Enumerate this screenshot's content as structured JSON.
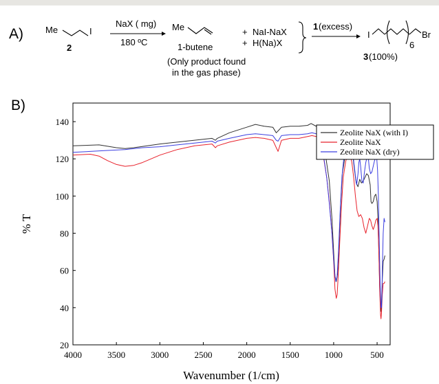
{
  "scheme": {
    "panel_label": "A)",
    "reactant_me": "Me",
    "reactant_i": "I",
    "reactant_number": "2",
    "reagent": "NaX ( mg)",
    "condition": "180 ºC",
    "product_me": "Me",
    "product_name": "1-butene",
    "note_line1": "(Only product found",
    "note_line2": "in the gas phase)",
    "plus": "+",
    "byproduct1": "NaI-NaX",
    "byproduct2": "H(Na)X",
    "second_reagent_bold": "1",
    "second_reagent_text": " (excess)",
    "final_i": "I",
    "final_br": "Br",
    "final_subscript": "6",
    "final_number": "3",
    "final_yield": " (100%)"
  },
  "chart_panel_label": "B)",
  "chart_data": {
    "type": "line",
    "xlabel": "Wavenumber (1/cm)",
    "ylabel": "% T",
    "xlim": [
      4000,
      350
    ],
    "ylim": [
      20,
      150
    ],
    "x_ticks": [
      4000,
      3500,
      3000,
      2500,
      2000,
      1500,
      1000,
      500
    ],
    "y_ticks": [
      20,
      40,
      60,
      80,
      100,
      120,
      140
    ],
    "legend_position": "top-right",
    "grid": false,
    "series": [
      {
        "name": "Zeolite NaX (with I)",
        "color": "#303030",
        "points": [
          [
            4000,
            127
          ],
          [
            3700,
            127.5
          ],
          [
            3500,
            126
          ],
          [
            3400,
            125.5
          ],
          [
            3300,
            126
          ],
          [
            3000,
            128
          ],
          [
            2700,
            129.5
          ],
          [
            2400,
            131
          ],
          [
            2360,
            130
          ],
          [
            2340,
            131
          ],
          [
            2200,
            134
          ],
          [
            2000,
            137
          ],
          [
            1900,
            138.5
          ],
          [
            1800,
            137.5
          ],
          [
            1700,
            137
          ],
          [
            1660,
            134
          ],
          [
            1640,
            135
          ],
          [
            1600,
            137
          ],
          [
            1500,
            137.5
          ],
          [
            1400,
            137.5
          ],
          [
            1300,
            138
          ],
          [
            1260,
            139
          ],
          [
            1220,
            138
          ],
          [
            1180,
            137
          ],
          [
            1150,
            134
          ],
          [
            1100,
            124
          ],
          [
            1050,
            108
          ],
          [
            1020,
            88
          ],
          [
            1000,
            70
          ],
          [
            985,
            57
          ],
          [
            970,
            54
          ],
          [
            955,
            58
          ],
          [
            940,
            72
          ],
          [
            920,
            95
          ],
          [
            900,
            112
          ],
          [
            870,
            121
          ],
          [
            840,
            124
          ],
          [
            810,
            125
          ],
          [
            780,
            122
          ],
          [
            760,
            114
          ],
          [
            740,
            107
          ],
          [
            720,
            105
          ],
          [
            700,
            109
          ],
          [
            680,
            107
          ],
          [
            660,
            108
          ],
          [
            640,
            110
          ],
          [
            620,
            112
          ],
          [
            600,
            111
          ],
          [
            580,
            106
          ],
          [
            570,
            97
          ],
          [
            560,
            96
          ],
          [
            545,
            97
          ],
          [
            530,
            100
          ],
          [
            515,
            101
          ],
          [
            500,
            97
          ],
          [
            490,
            88
          ],
          [
            480,
            70
          ],
          [
            470,
            52
          ],
          [
            460,
            40
          ],
          [
            455,
            38
          ],
          [
            450,
            42
          ],
          [
            440,
            55
          ],
          [
            430,
            65
          ],
          [
            420,
            66
          ],
          [
            410,
            68
          ]
        ]
      },
      {
        "name": "Zeolite NaX",
        "color": "#e8202a",
        "points": [
          [
            4000,
            122
          ],
          [
            3800,
            122.5
          ],
          [
            3700,
            121.5
          ],
          [
            3600,
            119
          ],
          [
            3500,
            117
          ],
          [
            3400,
            116
          ],
          [
            3300,
            116.5
          ],
          [
            3200,
            118
          ],
          [
            3100,
            120
          ],
          [
            3000,
            122
          ],
          [
            2800,
            125
          ],
          [
            2600,
            127
          ],
          [
            2400,
            128
          ],
          [
            2360,
            126
          ],
          [
            2340,
            127
          ],
          [
            2200,
            129
          ],
          [
            2000,
            131
          ],
          [
            1900,
            131.5
          ],
          [
            1800,
            131
          ],
          [
            1700,
            130
          ],
          [
            1660,
            126
          ],
          [
            1640,
            124
          ],
          [
            1620,
            127
          ],
          [
            1600,
            130
          ],
          [
            1500,
            131
          ],
          [
            1400,
            131
          ],
          [
            1300,
            132
          ],
          [
            1250,
            132.5
          ],
          [
            1200,
            132
          ],
          [
            1160,
            130
          ],
          [
            1120,
            122
          ],
          [
            1080,
            110
          ],
          [
            1050,
            97
          ],
          [
            1020,
            80
          ],
          [
            1000,
            65
          ],
          [
            985,
            50
          ],
          [
            970,
            45
          ],
          [
            960,
            47
          ],
          [
            950,
            55
          ],
          [
            930,
            75
          ],
          [
            910,
            95
          ],
          [
            890,
            110
          ],
          [
            860,
            119
          ],
          [
            830,
            122
          ],
          [
            810,
            122
          ],
          [
            790,
            118
          ],
          [
            770,
            110
          ],
          [
            750,
            100
          ],
          [
            730,
            92
          ],
          [
            710,
            89
          ],
          [
            690,
            90
          ],
          [
            670,
            88
          ],
          [
            650,
            83
          ],
          [
            630,
            80
          ],
          [
            610,
            84
          ],
          [
            590,
            88
          ],
          [
            575,
            87
          ],
          [
            560,
            84
          ],
          [
            545,
            82
          ],
          [
            530,
            84
          ],
          [
            515,
            87
          ],
          [
            500,
            88
          ],
          [
            490,
            84
          ],
          [
            480,
            70
          ],
          [
            470,
            50
          ],
          [
            460,
            36
          ],
          [
            455,
            34
          ],
          [
            450,
            37
          ],
          [
            440,
            47
          ],
          [
            430,
            53
          ],
          [
            420,
            53
          ],
          [
            410,
            54
          ]
        ]
      },
      {
        "name": "Zeolite NaX (dry)",
        "color": "#3a3de0",
        "points": [
          [
            4000,
            123.5
          ],
          [
            3800,
            124
          ],
          [
            3600,
            124.5
          ],
          [
            3400,
            125
          ],
          [
            3200,
            126
          ],
          [
            3000,
            126.5
          ],
          [
            2800,
            127.5
          ],
          [
            2600,
            128.5
          ],
          [
            2400,
            129.5
          ],
          [
            2360,
            128.5
          ],
          [
            2340,
            129.5
          ],
          [
            2200,
            131
          ],
          [
            2000,
            133
          ],
          [
            1900,
            133.5
          ],
          [
            1800,
            133
          ],
          [
            1700,
            132.5
          ],
          [
            1660,
            130
          ],
          [
            1640,
            129.5
          ],
          [
            1620,
            131
          ],
          [
            1600,
            132.5
          ],
          [
            1500,
            133
          ],
          [
            1400,
            133
          ],
          [
            1300,
            133.5
          ],
          [
            1250,
            134
          ],
          [
            1200,
            133.5
          ],
          [
            1160,
            131
          ],
          [
            1120,
            123
          ],
          [
            1080,
            110
          ],
          [
            1050,
            96
          ],
          [
            1020,
            80
          ],
          [
            1000,
            66
          ],
          [
            985,
            57
          ],
          [
            975,
            54
          ],
          [
            960,
            57
          ],
          [
            945,
            70
          ],
          [
            925,
            92
          ],
          [
            905,
            110
          ],
          [
            880,
            122
          ],
          [
            850,
            130
          ],
          [
            830,
            133
          ],
          [
            810,
            132
          ],
          [
            790,
            127
          ],
          [
            770,
            119
          ],
          [
            750,
            111
          ],
          [
            735,
            106
          ],
          [
            720,
            112
          ],
          [
            710,
            118
          ],
          [
            700,
            120
          ],
          [
            690,
            116
          ],
          [
            675,
            108
          ],
          [
            660,
            107
          ],
          [
            645,
            113
          ],
          [
            630,
            118
          ],
          [
            615,
            121
          ],
          [
            600,
            120
          ],
          [
            590,
            115
          ],
          [
            575,
            112
          ],
          [
            560,
            113
          ],
          [
            545,
            116
          ],
          [
            530,
            119
          ],
          [
            515,
            121
          ],
          [
            505,
            121
          ],
          [
            495,
            114
          ],
          [
            485,
            100
          ],
          [
            475,
            75
          ],
          [
            465,
            52
          ],
          [
            455,
            40
          ],
          [
            450,
            40
          ],
          [
            445,
            45
          ],
          [
            440,
            60
          ],
          [
            430,
            80
          ],
          [
            420,
            88
          ],
          [
            410,
            86
          ]
        ]
      }
    ]
  }
}
